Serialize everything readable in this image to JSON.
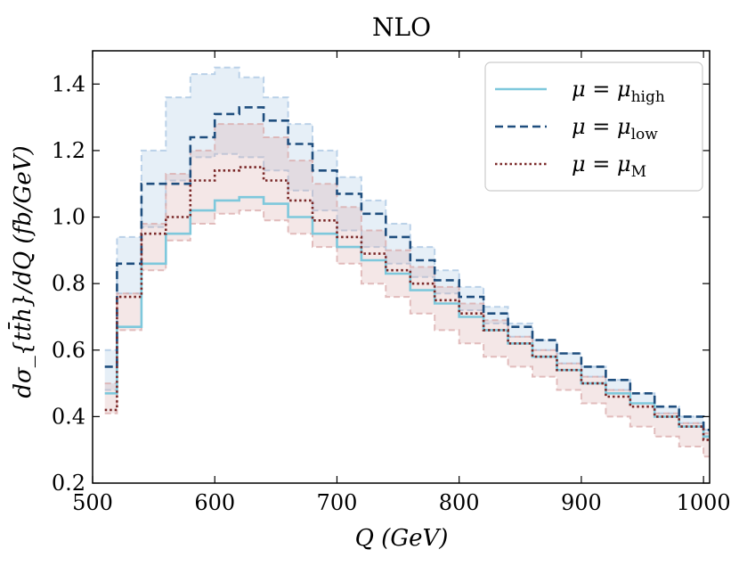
{
  "chart_data": {
    "type": "line",
    "subtype": "step",
    "title": "NLO",
    "xlabel": "Q (GeV)",
    "ylabel": "dσ_{tt̄h}/dQ (fb/GeV)",
    "xlim": [
      500,
      1005
    ],
    "ylim": [
      0.2,
      1.5
    ],
    "xticks": [
      500,
      600,
      700,
      800,
      900,
      1000
    ],
    "yticks": [
      0.2,
      0.4,
      0.6,
      0.8,
      1.0,
      1.2,
      1.4
    ],
    "xtick_labels": [
      "500",
      "600",
      "700",
      "800",
      "900",
      "1000"
    ],
    "ytick_labels": [
      "0.2",
      "0.4",
      "0.6",
      "0.8",
      "1.0",
      "1.2",
      "1.4"
    ],
    "legend_position": "top-right",
    "bin_edges": [
      510,
      520,
      540,
      560,
      580,
      600,
      620,
      640,
      660,
      680,
      700,
      720,
      740,
      760,
      780,
      800,
      820,
      840,
      860,
      880,
      900,
      920,
      940,
      960,
      980,
      1000,
      1005
    ],
    "series": [
      {
        "name": "μ = μ_high",
        "legend_main": "μ = μ",
        "legend_sub": "high",
        "color": "#7ec8dc",
        "style": "solid",
        "values": [
          0.47,
          0.67,
          0.86,
          0.95,
          1.02,
          1.05,
          1.06,
          1.04,
          1.0,
          0.95,
          0.91,
          0.87,
          0.83,
          0.78,
          0.74,
          0.7,
          0.66,
          0.62,
          0.58,
          0.54,
          0.5,
          0.47,
          0.44,
          0.4,
          0.37,
          0.34,
          0.28
        ],
        "band": {
          "color": "#a7c4e2",
          "upper": [
            0.6,
            0.94,
            1.2,
            1.36,
            1.43,
            1.45,
            1.42,
            1.36,
            1.28,
            1.2,
            1.12,
            1.05,
            0.98,
            0.91,
            0.84,
            0.79,
            0.73,
            0.68,
            0.63,
            0.59,
            0.55,
            0.51,
            0.47,
            0.43,
            0.4,
            0.36,
            0.3
          ],
          "lower": [
            0.48,
            0.77,
            0.97,
            1.11,
            1.18,
            1.19,
            1.18,
            1.14,
            1.08,
            1.02,
            0.96,
            0.91,
            0.86,
            0.82,
            0.77,
            0.72,
            0.68,
            0.64,
            0.6,
            0.56,
            0.52,
            0.48,
            0.44,
            0.41,
            0.38,
            0.34,
            0.27
          ]
        }
      },
      {
        "name": "μ = μ_low",
        "legend_main": "μ = μ",
        "legend_sub": "low",
        "color": "#1f4e7e",
        "style": "dashed",
        "values": [
          0.55,
          0.86,
          1.1,
          1.1,
          1.24,
          1.31,
          1.33,
          1.29,
          1.22,
          1.14,
          1.07,
          1.01,
          0.94,
          0.87,
          0.81,
          0.76,
          0.71,
          0.67,
          0.63,
          0.59,
          0.55,
          0.51,
          0.47,
          0.43,
          0.4,
          0.36,
          0.3
        ]
      },
      {
        "name": "μ = μ_M",
        "legend_main": "μ = μ",
        "legend_sub": "M",
        "color": "#7a2828",
        "style": "dotted",
        "values": [
          0.42,
          0.76,
          0.95,
          1.0,
          1.11,
          1.14,
          1.15,
          1.11,
          1.05,
          0.99,
          0.94,
          0.89,
          0.84,
          0.8,
          0.75,
          0.71,
          0.66,
          0.62,
          0.58,
          0.54,
          0.5,
          0.46,
          0.43,
          0.4,
          0.37,
          0.33,
          0.27
        ],
        "band": {
          "color": "#d9a9a9",
          "upper": [
            0.5,
            0.77,
            0.98,
            1.13,
            1.2,
            1.28,
            1.28,
            1.24,
            1.17,
            1.1,
            1.03,
            0.96,
            0.9,
            0.85,
            0.79,
            0.74,
            0.69,
            0.64,
            0.6,
            0.56,
            0.52,
            0.48,
            0.44,
            0.41,
            0.38,
            0.35,
            0.28
          ],
          "lower": [
            0.41,
            0.66,
            0.84,
            0.93,
            0.98,
            1.01,
            1.02,
            0.99,
            0.95,
            0.91,
            0.86,
            0.8,
            0.76,
            0.71,
            0.66,
            0.62,
            0.58,
            0.55,
            0.52,
            0.48,
            0.44,
            0.4,
            0.37,
            0.34,
            0.31,
            0.28,
            0.22
          ]
        }
      }
    ]
  }
}
